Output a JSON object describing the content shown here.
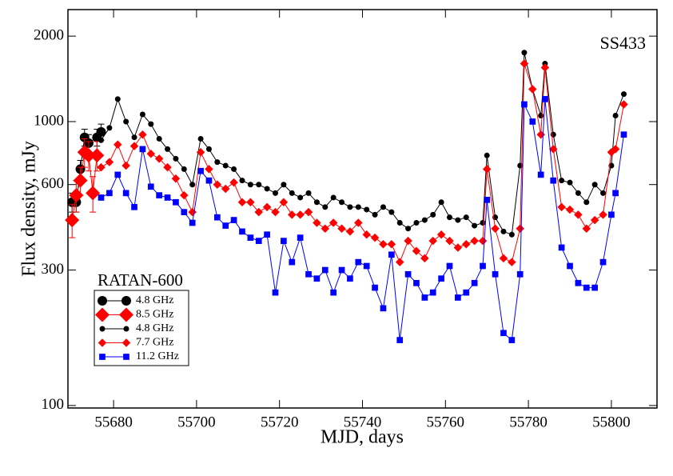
{
  "chart_data": {
    "type": "line",
    "log_y": true,
    "xlabel": "MJD, days",
    "ylabel": "Flux density, mJy",
    "annotation": "SS433",
    "annotation_color": "#ff0000",
    "legend_title": "RATAN-600",
    "xlim": [
      55669,
      55811
    ],
    "xticks": [
      55680,
      55700,
      55720,
      55740,
      55760,
      55780,
      55800
    ],
    "ylim": [
      98,
      2480
    ],
    "yticks": [
      100,
      300,
      600,
      1000,
      2000
    ],
    "series": [
      {
        "name": "4.8 GHz",
        "color": "#000000",
        "marker": "circle",
        "marker_size": "large",
        "x": [
          55670,
          55671,
          55672,
          55673,
          55674,
          55676,
          55677
        ],
        "values": [
          520,
          520,
          680,
          880,
          840,
          880,
          920
        ],
        "errors": [
          40,
          40,
          50,
          60,
          60,
          60,
          60
        ]
      },
      {
        "name": "8.5 GHz",
        "color": "#ff0000",
        "marker": "diamond",
        "marker_size": "large",
        "x": [
          55670,
          55671,
          55672,
          55673,
          55674,
          55675,
          55676
        ],
        "values": [
          450,
          550,
          620,
          780,
          760,
          560,
          760
        ],
        "errors": [
          60,
          70,
          70,
          90,
          90,
          80,
          90
        ]
      },
      {
        "name": "4.8 GHz",
        "color": "#000000",
        "marker": "circle",
        "marker_size": "small",
        "x": [
          55677,
          55679,
          55681,
          55683,
          55685,
          55687,
          55689,
          55691,
          55693,
          55695,
          55697,
          55699,
          55701,
          55703,
          55705,
          55707,
          55709,
          55711,
          55713,
          55715,
          55717,
          55719,
          55721,
          55723,
          55725,
          55727,
          55729,
          55731,
          55733,
          55735,
          55737,
          55739,
          55741,
          55743,
          55745,
          55747,
          55749,
          55751,
          55753,
          55755,
          55757,
          55759,
          55761,
          55763,
          55765,
          55767,
          55769,
          55770,
          55772,
          55774,
          55776,
          55778,
          55779,
          55781,
          55783,
          55784,
          55786,
          55788,
          55790,
          55792,
          55794,
          55796,
          55798,
          55800,
          55801,
          55803
        ],
        "values": [
          860,
          950,
          1200,
          1000,
          880,
          1060,
          980,
          870,
          800,
          740,
          680,
          600,
          870,
          800,
          720,
          700,
          680,
          620,
          600,
          600,
          580,
          560,
          600,
          560,
          540,
          560,
          520,
          500,
          540,
          520,
          500,
          500,
          490,
          470,
          500,
          480,
          440,
          420,
          440,
          450,
          470,
          520,
          460,
          450,
          460,
          430,
          440,
          760,
          460,
          410,
          400,
          700,
          1750,
          1300,
          1050,
          1600,
          900,
          620,
          610,
          560,
          520,
          600,
          560,
          700,
          1050,
          1250
        ]
      },
      {
        "name": "7.7 GHz",
        "color": "#ff0000",
        "marker": "diamond",
        "marker_size": "small",
        "x": [
          55677,
          55679,
          55681,
          55683,
          55685,
          55687,
          55689,
          55691,
          55693,
          55695,
          55697,
          55699,
          55701,
          55703,
          55705,
          55707,
          55709,
          55711,
          55713,
          55715,
          55717,
          55719,
          55721,
          55723,
          55725,
          55727,
          55729,
          55731,
          55733,
          55735,
          55737,
          55739,
          55741,
          55743,
          55745,
          55747,
          55749,
          55751,
          55753,
          55755,
          55757,
          55759,
          55761,
          55763,
          55765,
          55767,
          55769,
          55770,
          55772,
          55774,
          55776,
          55778,
          55779,
          55781,
          55783,
          55784,
          55786,
          55788,
          55790,
          55792,
          55794,
          55796,
          55798,
          55800,
          55801,
          55803
        ],
        "values": [
          690,
          720,
          830,
          700,
          820,
          900,
          770,
          740,
          690,
          630,
          550,
          480,
          780,
          680,
          600,
          580,
          610,
          520,
          520,
          480,
          500,
          480,
          520,
          470,
          470,
          480,
          440,
          420,
          440,
          420,
          410,
          440,
          400,
          390,
          370,
          370,
          320,
          380,
          350,
          330,
          380,
          400,
          380,
          360,
          370,
          380,
          380,
          680,
          420,
          330,
          320,
          420,
          1600,
          1300,
          900,
          1550,
          800,
          500,
          490,
          470,
          420,
          450,
          470,
          780,
          800,
          1150
        ]
      },
      {
        "name": "11.2 GHz",
        "color": "#0000ff",
        "marker": "square",
        "marker_size": "small",
        "x": [
          55677,
          55679,
          55681,
          55683,
          55685,
          55687,
          55689,
          55691,
          55693,
          55695,
          55697,
          55699,
          55701,
          55703,
          55705,
          55707,
          55709,
          55711,
          55713,
          55715,
          55717,
          55719,
          55721,
          55723,
          55725,
          55727,
          55729,
          55731,
          55733,
          55735,
          55737,
          55739,
          55741,
          55743,
          55745,
          55747,
          55749,
          55751,
          55753,
          55755,
          55757,
          55759,
          55761,
          55763,
          55765,
          55767,
          55769,
          55770,
          55772,
          55774,
          55776,
          55778,
          55779,
          55781,
          55783,
          55784,
          55786,
          55788,
          55790,
          55792,
          55794,
          55796,
          55798,
          55800,
          55801,
          55803
        ],
        "values": [
          540,
          560,
          650,
          560,
          500,
          800,
          590,
          550,
          540,
          520,
          480,
          440,
          670,
          620,
          460,
          430,
          450,
          410,
          390,
          380,
          400,
          250,
          380,
          320,
          390,
          290,
          280,
          300,
          250,
          300,
          280,
          320,
          310,
          260,
          220,
          340,
          170,
          290,
          270,
          240,
          250,
          280,
          310,
          240,
          250,
          270,
          310,
          530,
          290,
          180,
          170,
          290,
          1150,
          1000,
          650,
          1200,
          620,
          360,
          310,
          270,
          260,
          260,
          320,
          470,
          560,
          900
        ]
      }
    ]
  }
}
